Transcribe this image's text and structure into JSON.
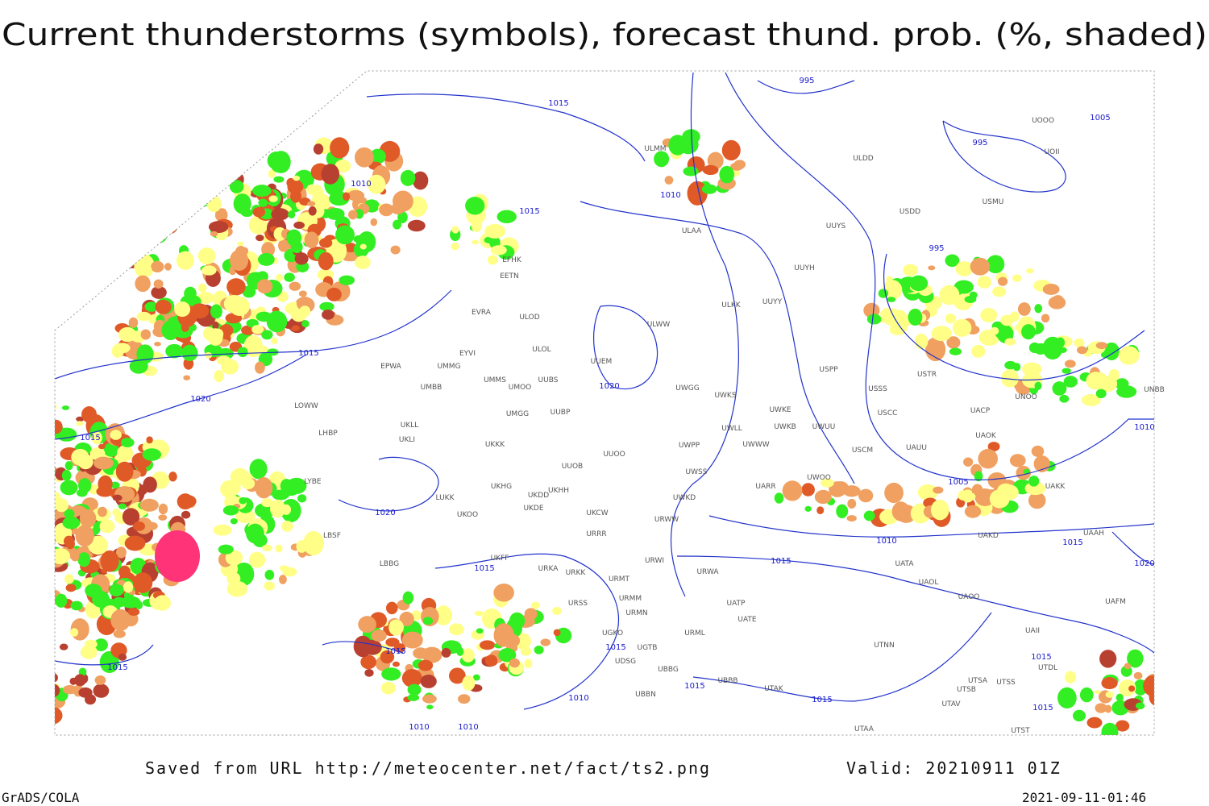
{
  "title": "Current thunderstorms (symbols), forecast thund. prob. (%, shaded)",
  "stations": [
    "EFHK",
    "EETN",
    "EVRA",
    "ULOD",
    "ULOL",
    "EYVI",
    "EPWA",
    "UMMG",
    "UMBB",
    "UMMS",
    "UMOO",
    "UUBS",
    "UUBP",
    "UMGG",
    "UKLL",
    "UKLI",
    "UKKK",
    "UUOO",
    "UUOB",
    "LOWW",
    "LHBP",
    "LYBE",
    "LUKK",
    "UKHG",
    "UKDD",
    "UKHH",
    "UKDE",
    "UKOO",
    "UKCW",
    "URRR",
    "LBSF",
    "LBBG",
    "UKFF",
    "URKA",
    "URKK",
    "URMT",
    "URMM",
    "URMN",
    "URSS",
    "UGKO",
    "UGTB",
    "UDSG",
    "UBBG",
    "UBBN",
    "URWI",
    "URML",
    "URWA",
    "URWW",
    "UWSS",
    "UWPP",
    "UWGG",
    "UWKS",
    "UWLL",
    "UWWW",
    "UWKD",
    "UWKE",
    "UWKB",
    "UWUU",
    "UARR",
    "UWOO",
    "USCM",
    "UAUU",
    "USCC",
    "USSS",
    "USTR",
    "USPP",
    "ULWW",
    "UUEM",
    "UUYY",
    "ULKK",
    "UUYH",
    "UUYS",
    "ULAA",
    "ULMM",
    "ULDD",
    "USDD",
    "USMU",
    "UOII",
    "UOOO",
    "UNOO",
    "UACP",
    "UAOK",
    "UAKK",
    "UAKD",
    "UAAH",
    "UATA",
    "UAOL",
    "UAOO",
    "UATP",
    "UATE",
    "UTAK",
    "UBBB",
    "UTNN",
    "UTSA",
    "UTSB",
    "UTSS",
    "UTAV",
    "UTST",
    "UTAA",
    "UAII",
    "UAFM",
    "UTDL",
    "UNBB"
  ],
  "isobar_labels": [
    "1015",
    "1010",
    "1015",
    "1015",
    "1020",
    "1015",
    "1020",
    "1015",
    "1015",
    "1015",
    "1010",
    "1010",
    "1010",
    "1015",
    "1015",
    "1015",
    "1015",
    "1010",
    "1005",
    "1010",
    "1015",
    "1020",
    "1015",
    "1015",
    "995",
    "995",
    "1005",
    "995",
    "1020",
    "1010"
  ],
  "footer": {
    "source": "Saved from URL http://meteocenter.net/fact/ts2.png",
    "valid": "Valid: 20210911 01Z",
    "software": "GrADS/COLA",
    "timestamp": "2021-09-11-01:46"
  }
}
